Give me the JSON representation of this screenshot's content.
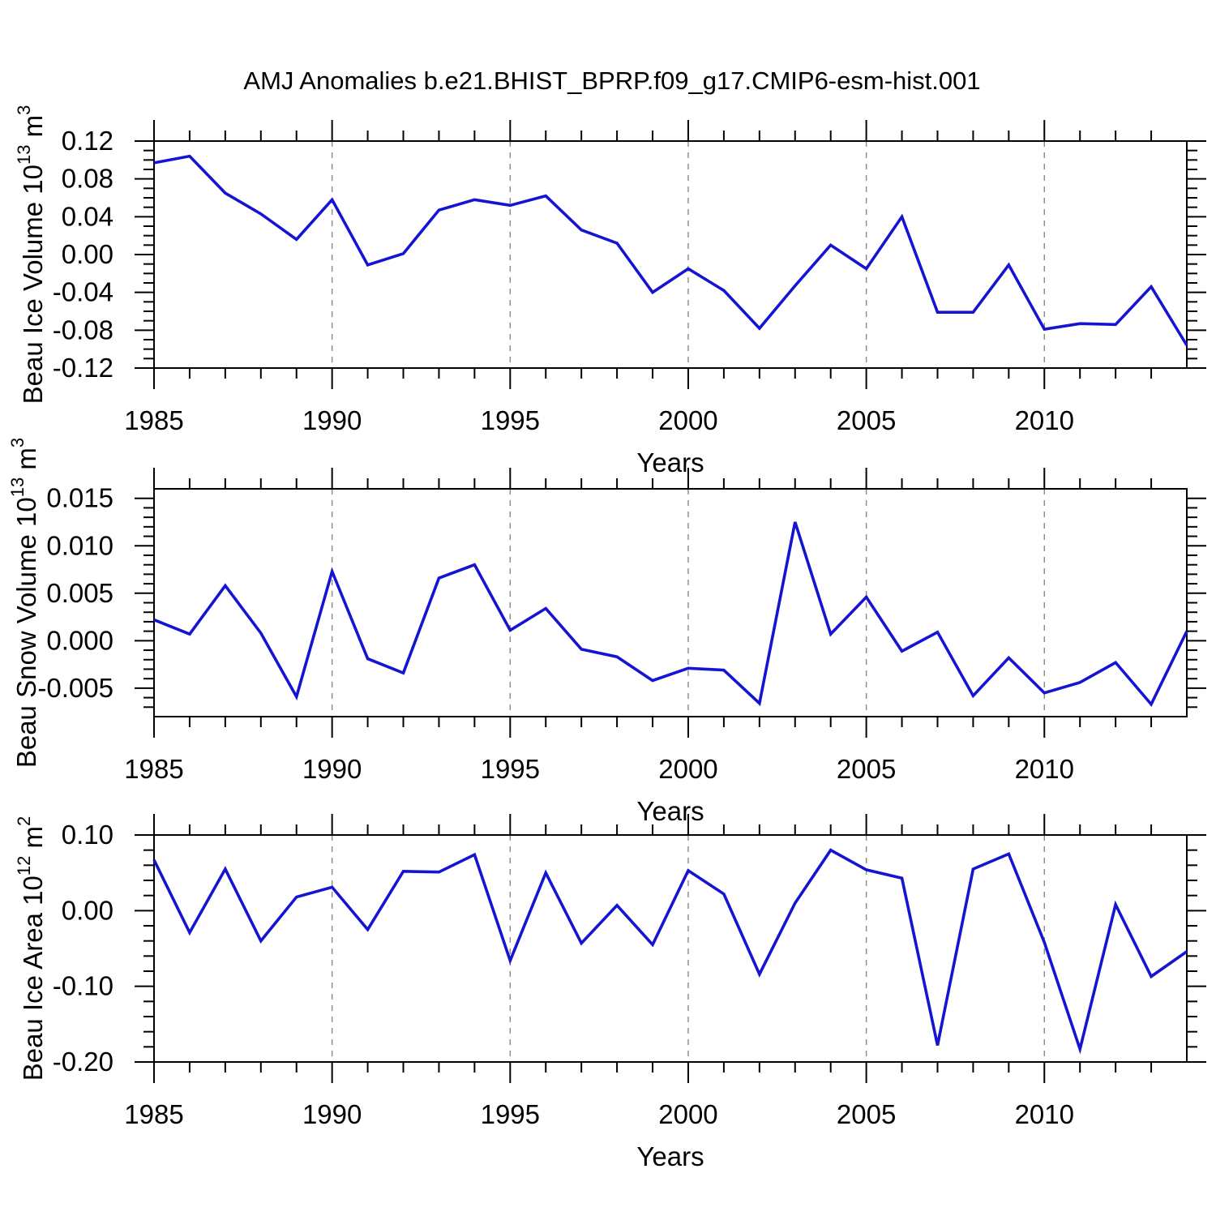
{
  "title": "AMJ Anomalies b.e21.BHIST_BPRP.f09_g17.CMIP6-esm-hist.001",
  "colors": {
    "line": "#1414d2",
    "grid": "#888888",
    "frame": "#000000"
  },
  "years": [
    1985,
    1986,
    1987,
    1988,
    1989,
    1990,
    1991,
    1992,
    1993,
    1994,
    1995,
    1996,
    1997,
    1998,
    1999,
    2000,
    2001,
    2002,
    2003,
    2004,
    2005,
    2006,
    2007,
    2008,
    2009,
    2010,
    2011,
    2012,
    2013,
    2014
  ],
  "x_major_labeled_years": [
    1985,
    1990,
    1995,
    2000,
    2005,
    2010
  ],
  "grid_years": [
    1990,
    1995,
    2000,
    2005,
    2010
  ],
  "chart_data": [
    {
      "type": "line",
      "name": "beau-ice-volume",
      "ylabel_text": "Beau Ice Volume 10^13 m^3",
      "ylabel_segments": [
        [
          "Beau Ice Volume 10",
          0
        ],
        [
          "13",
          1
        ],
        [
          " m",
          0
        ],
        [
          "3",
          1
        ]
      ],
      "xlabel": "Years",
      "legend": "none",
      "grid": "vertical-dashed",
      "xlim": [
        1985,
        2014
      ],
      "ylim": [
        -0.12,
        0.12
      ],
      "ymajor_values": [
        0.12,
        0.08,
        0.04,
        0.0,
        -0.04,
        -0.08,
        -0.12
      ],
      "ymajor_labels": [
        "0.12",
        "0.08",
        "0.04",
        "0.00",
        "-0.04",
        "-0.08",
        "-0.12"
      ],
      "yminor_step": 0.01,
      "values": [
        0.097,
        0.104,
        0.065,
        0.043,
        0.016,
        0.058,
        -0.011,
        0.001,
        0.047,
        0.058,
        0.052,
        0.062,
        0.026,
        0.012,
        -0.04,
        -0.015,
        -0.038,
        -0.078,
        -0.033,
        0.01,
        -0.015,
        0.04,
        -0.061,
        -0.061,
        -0.011,
        -0.079,
        -0.073,
        -0.074,
        -0.034,
        -0.096
      ]
    },
    {
      "type": "line",
      "name": "beau-snow-volume",
      "ylabel_text": "Beau Snow Volume 10^13 m^3",
      "ylabel_segments": [
        [
          "Beau Snow Volume 10",
          0
        ],
        [
          "13",
          1
        ],
        [
          " m",
          0
        ],
        [
          "3",
          1
        ]
      ],
      "xlabel": "Years",
      "legend": "none",
      "grid": "vertical-dashed",
      "xlim": [
        1985,
        2014
      ],
      "ylim": [
        -0.008,
        0.016
      ],
      "ymajor_values": [
        0.015,
        0.01,
        0.005,
        0.0,
        -0.005
      ],
      "ymajor_labels": [
        "0.015",
        "0.010",
        "0.005",
        "0.000",
        "-0.005"
      ],
      "yminor_step": 0.001,
      "values": [
        0.0022,
        0.0007,
        0.0058,
        0.0008,
        -0.0059,
        0.0073,
        -0.0019,
        -0.0034,
        0.0066,
        0.008,
        0.0011,
        0.0034,
        -0.0009,
        -0.0017,
        -0.0042,
        -0.0029,
        -0.0031,
        -0.0066,
        0.0125,
        0.0007,
        0.0046,
        -0.0011,
        0.0009,
        -0.0058,
        -0.0018,
        -0.0055,
        -0.0044,
        -0.0023,
        -0.0067,
        0.001
      ]
    },
    {
      "type": "line",
      "name": "beau-ice-area",
      "ylabel_text": "Beau Ice Area 10^12 m^2",
      "ylabel_segments": [
        [
          "Beau Ice Area 10",
          0
        ],
        [
          "12",
          1
        ],
        [
          " m",
          0
        ],
        [
          "2",
          1
        ]
      ],
      "xlabel": "Years",
      "legend": "none",
      "grid": "vertical-dashed",
      "xlim": [
        1985,
        2014
      ],
      "ylim": [
        -0.2,
        0.1
      ],
      "ymajor_values": [
        0.1,
        0.0,
        -0.1,
        -0.2
      ],
      "ymajor_labels": [
        "0.10",
        "0.00",
        "-0.10",
        "-0.20"
      ],
      "yminor_step": 0.02,
      "values": [
        0.067,
        -0.029,
        0.055,
        -0.04,
        0.018,
        0.031,
        -0.025,
        0.052,
        0.051,
        0.074,
        -0.066,
        0.05,
        -0.043,
        0.007,
        -0.045,
        0.053,
        0.022,
        -0.084,
        0.01,
        0.08,
        0.054,
        0.043,
        -0.178,
        0.055,
        0.075,
        -0.042,
        -0.183,
        0.008,
        -0.087,
        -0.054
      ]
    }
  ]
}
